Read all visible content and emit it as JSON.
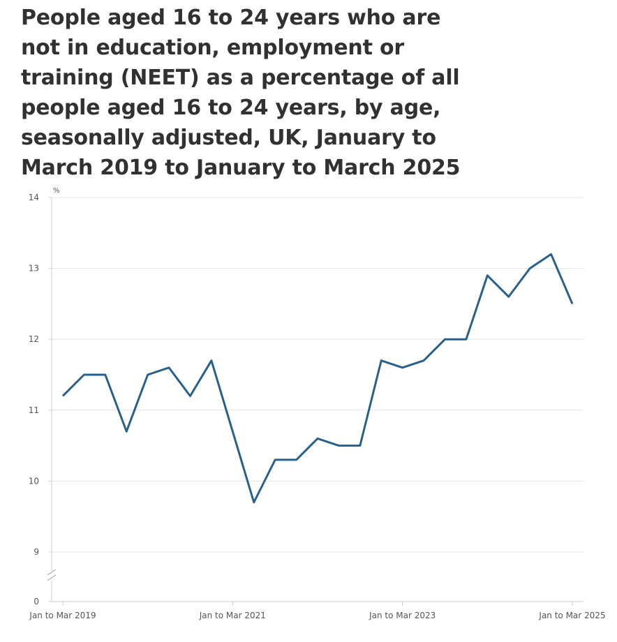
{
  "chart_data": {
    "type": "line",
    "title": "People aged 16 to 24 years who are not in education, employment or training (NEET) as a percentage of all people aged 16 to 24 years, by age, seasonally adjusted, UK, January to March 2019 to January to March 2025",
    "y_unit": "%",
    "categories": [
      "Jan to Mar 2019",
      null,
      null,
      null,
      null,
      null,
      null,
      null,
      "Jan to Mar 2021",
      null,
      null,
      null,
      null,
      null,
      null,
      null,
      "Jan to Mar 2023",
      null,
      null,
      null,
      null,
      null,
      null,
      null,
      "Jan to Mar 2025"
    ],
    "series": [
      {
        "color": "#27608c",
        "values": [
          11.2,
          11.5,
          11.5,
          10.7,
          11.5,
          11.6,
          11.2,
          11.7,
          10.7,
          9.7,
          10.3,
          10.3,
          10.6,
          10.5,
          10.5,
          11.7,
          11.6,
          11.7,
          12.0,
          12.0,
          12.9,
          12.6,
          13.0,
          13.2,
          12.5
        ]
      }
    ],
    "ylim": [
      0,
      14
    ],
    "yticks": [
      0,
      9,
      10,
      11,
      12,
      13,
      14
    ],
    "axis_break": [
      0,
      9
    ],
    "grid": true
  }
}
